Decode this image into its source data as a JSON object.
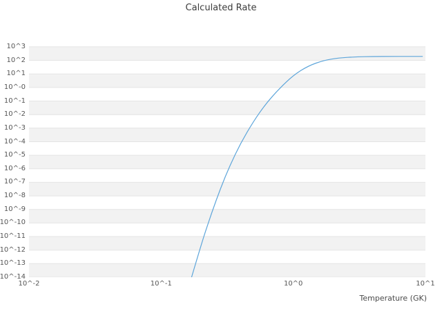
{
  "chart_data": {
    "type": "line",
    "title": "Calculated Rate",
    "xlabel": "Temperature (GK)",
    "ylabel": "",
    "x_scale": "log",
    "y_scale": "log",
    "x_log_range": [
      -2,
      1
    ],
    "y_log_range": [
      -14,
      3.3
    ],
    "grid": "horizontal-bands",
    "legend": "none",
    "band_fill": "#f2f2f2",
    "grid_color": "#e4e4e4",
    "x_ticks": [
      {
        "label": "10^-2",
        "log": -2
      },
      {
        "label": "10^-1",
        "log": -1
      },
      {
        "label": "10^0",
        "log": 0
      },
      {
        "label": "10^1",
        "log": 1
      }
    ],
    "y_ticks": [
      {
        "label": "10^3",
        "log": 3
      },
      {
        "label": "10^2",
        "log": 2
      },
      {
        "label": "10^1",
        "log": 1
      },
      {
        "label": "10^-0",
        "log": 0
      },
      {
        "label": "10^-1",
        "log": -1
      },
      {
        "label": "10^-2",
        "log": -2
      },
      {
        "label": "10^-3",
        "log": -3
      },
      {
        "label": "10^-4",
        "log": -4
      },
      {
        "label": "10^-5",
        "log": -5
      },
      {
        "label": "10^-6",
        "log": -6
      },
      {
        "label": "10^-7",
        "log": -7
      },
      {
        "label": "10^-8",
        "log": -8
      },
      {
        "label": "10^-9",
        "log": -9
      },
      {
        "label": "10^-10",
        "log": -10
      },
      {
        "label": "10^-11",
        "log": -11
      },
      {
        "label": "10^-12",
        "log": -12
      },
      {
        "label": "10^-13",
        "log": -13
      },
      {
        "label": "10^-14",
        "log": -14
      }
    ],
    "series": [
      {
        "name": "calculated-rate",
        "color": "#5da5da",
        "points": [
          [
            0.17,
            1e-14
          ],
          [
            0.19,
            4e-13
          ],
          [
            0.21,
            1e-11
          ],
          [
            0.24,
            5e-10
          ],
          [
            0.28,
            3.2e-08
          ],
          [
            0.33,
            1.6e-06
          ],
          [
            0.4,
            7.9e-05
          ],
          [
            0.5,
            0.0032
          ],
          [
            0.62,
            0.063
          ],
          [
            0.78,
            0.79
          ],
          [
            1.0,
            7.9
          ],
          [
            1.3,
            40
          ],
          [
            1.7,
            100
          ],
          [
            2.2,
            151
          ],
          [
            3.0,
            182
          ],
          [
            4.0,
            191
          ],
          [
            5.5,
            195
          ],
          [
            7.0,
            195
          ],
          [
            9.5,
            195
          ]
        ]
      }
    ]
  }
}
